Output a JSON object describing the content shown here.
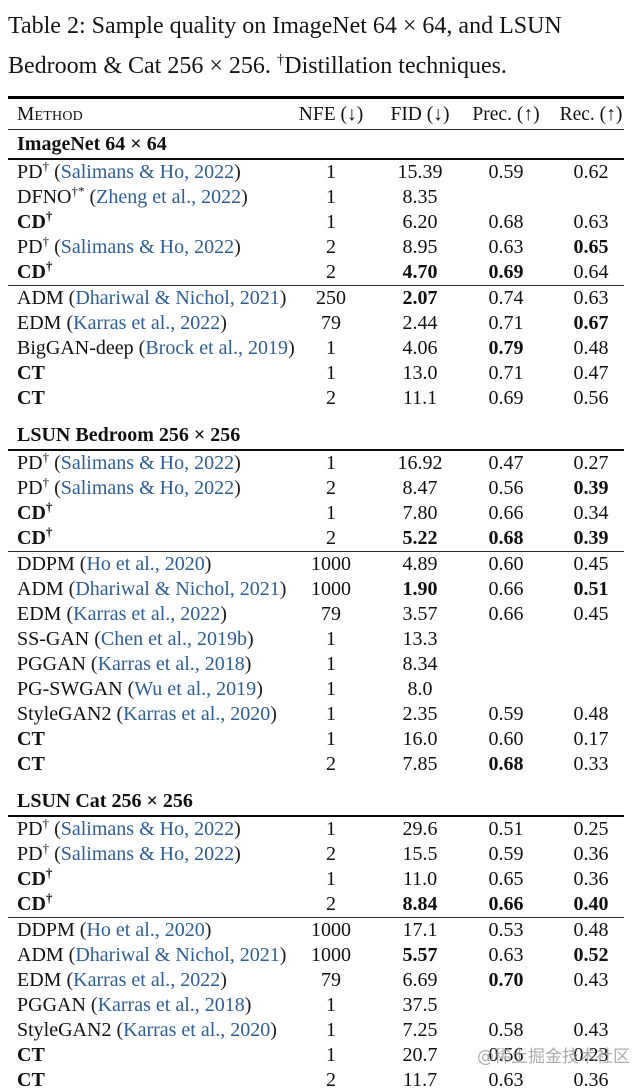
{
  "title": {
    "line1": "Table 2: Sample quality on ImageNet 64 × 64, and LSUN",
    "line2_pre": "Bedroom & Cat 256 × 256. ",
    "dagger": "†",
    "line2_post": "Distillation techniques."
  },
  "colors": {
    "citation_blue": "#2e5f93",
    "text": "#111111",
    "rule": "#000000",
    "watermark_gray": "#949496"
  },
  "watermark": {
    "text": "@稀土掘金技术社区"
  },
  "table": {
    "headers": [
      "Method",
      "NFE (↓)",
      "FID (↓)",
      "Prec. (↑)",
      "Rec. (↑)"
    ],
    "cite_open": "(",
    "cite_close": ")",
    "sections": [
      {
        "title": "ImageNet 64 × 64",
        "groups": [
          [
            {
              "method": "PD",
              "sup": "†",
              "cite": "Salimans & Ho, 2022",
              "bold_method": false,
              "cells": [
                "1",
                "15.39",
                "0.59",
                "0.62"
              ],
              "bold": [
                false,
                false,
                false,
                false
              ]
            },
            {
              "method": "DFNO",
              "sup": "†*",
              "cite": "Zheng et al., 2022",
              "bold_method": false,
              "cells": [
                "1",
                "8.35",
                "",
                ""
              ],
              "bold": [
                false,
                false,
                false,
                false
              ]
            },
            {
              "method": "CD",
              "sup": "†",
              "cite": "",
              "bold_method": true,
              "cells": [
                "1",
                "6.20",
                "0.68",
                "0.63"
              ],
              "bold": [
                false,
                false,
                false,
                false
              ]
            },
            {
              "method": "PD",
              "sup": "†",
              "cite": "Salimans & Ho, 2022",
              "bold_method": false,
              "cells": [
                "2",
                "8.95",
                "0.63",
                "0.65"
              ],
              "bold": [
                false,
                false,
                false,
                true
              ]
            },
            {
              "method": "CD",
              "sup": "†",
              "cite": "",
              "bold_method": true,
              "cells": [
                "2",
                "4.70",
                "0.69",
                "0.64"
              ],
              "bold": [
                false,
                true,
                true,
                false
              ]
            }
          ],
          [
            {
              "method": "ADM",
              "sup": "",
              "cite": "Dhariwal & Nichol, 2021",
              "bold_method": false,
              "cells": [
                "250",
                "2.07",
                "0.74",
                "0.63"
              ],
              "bold": [
                false,
                true,
                false,
                false
              ]
            },
            {
              "method": "EDM",
              "sup": "",
              "cite": "Karras et al., 2022",
              "bold_method": false,
              "cells": [
                "79",
                "2.44",
                "0.71",
                "0.67"
              ],
              "bold": [
                false,
                false,
                false,
                true
              ]
            },
            {
              "method": "BigGAN-deep",
              "sup": "",
              "cite": "Brock et al., 2019",
              "bold_method": false,
              "cells": [
                "1",
                "4.06",
                "0.79",
                "0.48"
              ],
              "bold": [
                false,
                false,
                true,
                false
              ]
            },
            {
              "method": "CT",
              "sup": "",
              "cite": "",
              "bold_method": true,
              "cells": [
                "1",
                "13.0",
                "0.71",
                "0.47"
              ],
              "bold": [
                false,
                false,
                false,
                false
              ]
            },
            {
              "method": "CT",
              "sup": "",
              "cite": "",
              "bold_method": true,
              "cells": [
                "2",
                "11.1",
                "0.69",
                "0.56"
              ],
              "bold": [
                false,
                false,
                false,
                false
              ]
            }
          ]
        ]
      },
      {
        "title": "LSUN Bedroom 256 × 256",
        "groups": [
          [
            {
              "method": "PD",
              "sup": "†",
              "cite": "Salimans & Ho, 2022",
              "bold_method": false,
              "cells": [
                "1",
                "16.92",
                "0.47",
                "0.27"
              ],
              "bold": [
                false,
                false,
                false,
                false
              ]
            },
            {
              "method": "PD",
              "sup": "†",
              "cite": "Salimans & Ho, 2022",
              "bold_method": false,
              "cells": [
                "2",
                "8.47",
                "0.56",
                "0.39"
              ],
              "bold": [
                false,
                false,
                false,
                true
              ]
            },
            {
              "method": "CD",
              "sup": "†",
              "cite": "",
              "bold_method": true,
              "cells": [
                "1",
                "7.80",
                "0.66",
                "0.34"
              ],
              "bold": [
                false,
                false,
                false,
                false
              ]
            },
            {
              "method": "CD",
              "sup": "†",
              "cite": "",
              "bold_method": true,
              "cells": [
                "2",
                "5.22",
                "0.68",
                "0.39"
              ],
              "bold": [
                false,
                true,
                true,
                true
              ]
            }
          ],
          [
            {
              "method": "DDPM",
              "sup": "",
              "cite": "Ho et al., 2020",
              "bold_method": false,
              "cells": [
                "1000",
                "4.89",
                "0.60",
                "0.45"
              ],
              "bold": [
                false,
                false,
                false,
                false
              ]
            },
            {
              "method": "ADM",
              "sup": "",
              "cite": "Dhariwal & Nichol, 2021",
              "bold_method": false,
              "cells": [
                "1000",
                "1.90",
                "0.66",
                "0.51"
              ],
              "bold": [
                false,
                true,
                false,
                true
              ]
            },
            {
              "method": "EDM",
              "sup": "",
              "cite": "Karras et al., 2022",
              "bold_method": false,
              "cells": [
                "79",
                "3.57",
                "0.66",
                "0.45"
              ],
              "bold": [
                false,
                false,
                false,
                false
              ]
            },
            {
              "method": "SS-GAN",
              "sup": "",
              "cite": "Chen et al., 2019b",
              "bold_method": false,
              "cells": [
                "1",
                "13.3",
                "",
                ""
              ],
              "bold": [
                false,
                false,
                false,
                false
              ]
            },
            {
              "method": "PGGAN",
              "sup": "",
              "cite": "Karras et al., 2018",
              "bold_method": false,
              "cells": [
                "1",
                "8.34",
                "",
                ""
              ],
              "bold": [
                false,
                false,
                false,
                false
              ]
            },
            {
              "method": "PG-SWGAN",
              "sup": "",
              "cite": "Wu et al., 2019",
              "bold_method": false,
              "cells": [
                "1",
                "8.0",
                "",
                ""
              ],
              "bold": [
                false,
                false,
                false,
                false
              ]
            },
            {
              "method": "StyleGAN2",
              "sup": "",
              "cite": "Karras et al., 2020",
              "bold_method": false,
              "cells": [
                "1",
                "2.35",
                "0.59",
                "0.48"
              ],
              "bold": [
                false,
                false,
                false,
                false
              ]
            },
            {
              "method": "CT",
              "sup": "",
              "cite": "",
              "bold_method": true,
              "cells": [
                "1",
                "16.0",
                "0.60",
                "0.17"
              ],
              "bold": [
                false,
                false,
                false,
                false
              ]
            },
            {
              "method": "CT",
              "sup": "",
              "cite": "",
              "bold_method": true,
              "cells": [
                "2",
                "7.85",
                "0.68",
                "0.33"
              ],
              "bold": [
                false,
                false,
                true,
                false
              ]
            }
          ]
        ]
      },
      {
        "title": "LSUN Cat 256 × 256",
        "groups": [
          [
            {
              "method": "PD",
              "sup": "†",
              "cite": "Salimans & Ho, 2022",
              "bold_method": false,
              "cells": [
                "1",
                "29.6",
                "0.51",
                "0.25"
              ],
              "bold": [
                false,
                false,
                false,
                false
              ]
            },
            {
              "method": "PD",
              "sup": "†",
              "cite": "Salimans & Ho, 2022",
              "bold_method": false,
              "cells": [
                "2",
                "15.5",
                "0.59",
                "0.36"
              ],
              "bold": [
                false,
                false,
                false,
                false
              ]
            },
            {
              "method": "CD",
              "sup": "†",
              "cite": "",
              "bold_method": true,
              "cells": [
                "1",
                "11.0",
                "0.65",
                "0.36"
              ],
              "bold": [
                false,
                false,
                false,
                false
              ]
            },
            {
              "method": "CD",
              "sup": "†",
              "cite": "",
              "bold_method": true,
              "cells": [
                "2",
                "8.84",
                "0.66",
                "0.40"
              ],
              "bold": [
                false,
                true,
                true,
                true
              ]
            }
          ],
          [
            {
              "method": "DDPM",
              "sup": "",
              "cite": "Ho et al., 2020",
              "bold_method": false,
              "cells": [
                "1000",
                "17.1",
                "0.53",
                "0.48"
              ],
              "bold": [
                false,
                false,
                false,
                false
              ]
            },
            {
              "method": "ADM",
              "sup": "",
              "cite": "Dhariwal & Nichol, 2021",
              "bold_method": false,
              "cells": [
                "1000",
                "5.57",
                "0.63",
                "0.52"
              ],
              "bold": [
                false,
                true,
                false,
                true
              ]
            },
            {
              "method": "EDM",
              "sup": "",
              "cite": "Karras et al., 2022",
              "bold_method": false,
              "cells": [
                "79",
                "6.69",
                "0.70",
                "0.43"
              ],
              "bold": [
                false,
                false,
                true,
                false
              ]
            },
            {
              "method": "PGGAN",
              "sup": "",
              "cite": "Karras et al., 2018",
              "bold_method": false,
              "cells": [
                "1",
                "37.5",
                "",
                ""
              ],
              "bold": [
                false,
                false,
                false,
                false
              ]
            },
            {
              "method": "StyleGAN2",
              "sup": "",
              "cite": "Karras et al., 2020",
              "bold_method": false,
              "cells": [
                "1",
                "7.25",
                "0.58",
                "0.43"
              ],
              "bold": [
                false,
                false,
                false,
                false
              ]
            },
            {
              "method": "CT",
              "sup": "",
              "cite": "",
              "bold_method": true,
              "cells": [
                "1",
                "20.7",
                "0.56",
                "0.23"
              ],
              "bold": [
                false,
                false,
                false,
                false
              ]
            },
            {
              "method": "CT",
              "sup": "",
              "cite": "",
              "bold_method": true,
              "cells": [
                "2",
                "11.7",
                "0.63",
                "0.36"
              ],
              "bold": [
                false,
                false,
                false,
                false
              ]
            }
          ]
        ]
      }
    ]
  }
}
